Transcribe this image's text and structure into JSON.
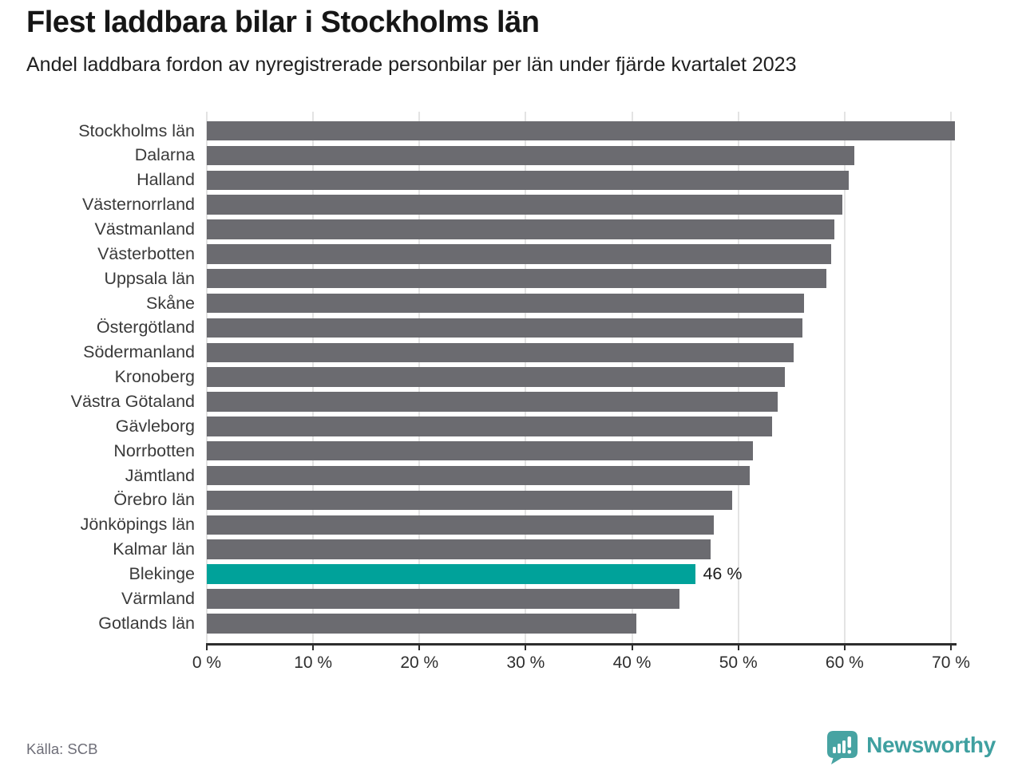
{
  "header": {
    "title": "Flest laddbara bilar i Stockholms län",
    "subtitle": "Andel laddbara fordon av nyregistrerade personbilar per län under fjärde kvartalet 2023"
  },
  "chart_data": {
    "type": "bar",
    "orientation": "horizontal",
    "title": "Flest laddbara bilar i Stockholms län",
    "subtitle": "Andel laddbara fordon av nyregistrerade personbilar per län under fjärde kvartalet 2023",
    "unit": "%",
    "categories": [
      "Stockholms län",
      "Dalarna",
      "Halland",
      "Västernorrland",
      "Västmanland",
      "Västerbotten",
      "Uppsala län",
      "Skåne",
      "Östergötland",
      "Södermanland",
      "Kronoberg",
      "Västra Götaland",
      "Gävleborg",
      "Norrbotten",
      "Jämtland",
      "Örebro län",
      "Jönköpings län",
      "Kalmar län",
      "Blekinge",
      "Värmland",
      "Gotlands län"
    ],
    "values": [
      70.4,
      60.9,
      60.4,
      59.8,
      59.0,
      58.7,
      58.3,
      56.2,
      56.0,
      55.2,
      54.4,
      53.7,
      53.2,
      51.4,
      51.1,
      49.4,
      47.7,
      47.4,
      46.0,
      44.5,
      40.4
    ],
    "highlight": {
      "index": 18,
      "category": "Blekinge",
      "value": 46.0,
      "label": "46 %"
    },
    "xlim": [
      0,
      70
    ],
    "x_tick_values": [
      0,
      10,
      20,
      30,
      40,
      50,
      60,
      70
    ],
    "x_tick_labels": [
      "0 %",
      "10 %",
      "20 %",
      "30 %",
      "40 %",
      "50 %",
      "60 %",
      "70 %"
    ],
    "grid": true,
    "legend": false,
    "colors": {
      "bar": "#6b6b70",
      "highlight": "#00a29a",
      "gridline": "#e3e3e3",
      "axis": "#2d2d2d"
    }
  },
  "footer": {
    "source": "Källa: SCB",
    "brand": "Newsworthy",
    "brand_color": "#3fa0a0",
    "brand_icon": "newsworthy-speech-bubble-chart-icon"
  }
}
